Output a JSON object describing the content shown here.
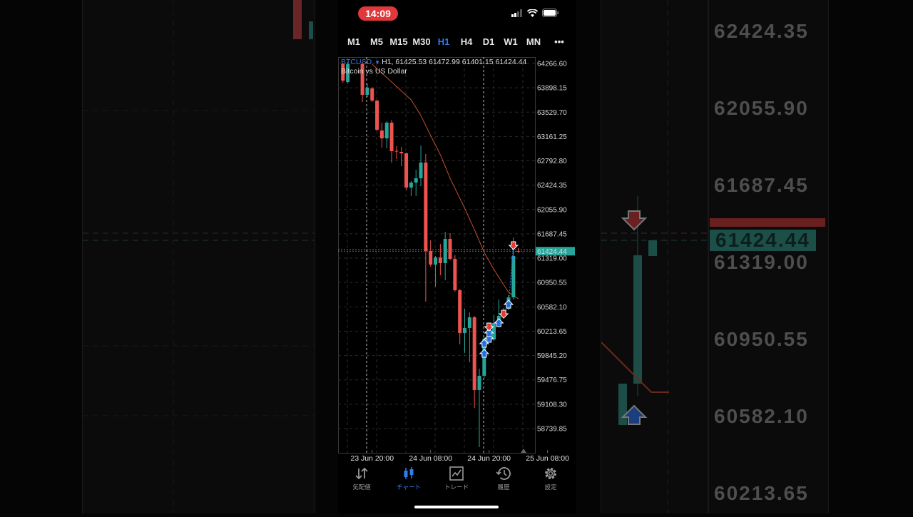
{
  "status_bar": {
    "time": "14:09",
    "icons": [
      "cellular-signal-icon",
      "wifi-icon",
      "battery-icon"
    ],
    "time_pill_color": "#e1393b"
  },
  "timeframes": {
    "items": [
      "M1",
      "M5",
      "M15",
      "M30",
      "H1",
      "H4",
      "D1",
      "W1",
      "MN"
    ],
    "selected": "H1",
    "more_label": "•••"
  },
  "legend": {
    "symbol": "BTCUSD",
    "ohlc_line": "H1, 61425.53 61472.99 61401.15 61424.44",
    "description": "Bitcoin vs US Dollar"
  },
  "colors": {
    "accent": "#2f7bf0",
    "bull": "#26a69a",
    "bear": "#ef5350",
    "ma": "#c0502a",
    "bid_line": "#26a69a",
    "ask_line": "#ef5350",
    "buy_arrow": "#1f6fe5",
    "sell_arrow": "#e53935"
  },
  "chart_data": {
    "type": "candlestick",
    "symbol": "BTCUSD",
    "timeframe": "H1",
    "ylim": [
      58372,
      64364
    ],
    "xlim": [
      "23 Jun 13:00",
      "25 Jun 05:24"
    ],
    "grid": true,
    "y_ticks": [
      "64266.60",
      "63898.15",
      "63529.70",
      "63161.25",
      "62792.80",
      "62424.35",
      "62055.90",
      "61687.45",
      "61319.00",
      "60950.55",
      "60582.10",
      "60213.65",
      "59845.20",
      "59476.75",
      "59108.30",
      "58739.85"
    ],
    "x_ticks": [
      "23 Jun 20:00",
      "24 Jun 08:00",
      "24 Jun 20:00",
      "25 Jun 08:00"
    ],
    "current_price_label": "61424.44",
    "bid": 61424.44,
    "ask": 61450,
    "candles": [
      [
        "23 Jun 14:00",
        64256,
        64277,
        63975,
        64007
      ],
      [
        "23 Jun 15:00",
        63986,
        64290,
        63960,
        64256
      ],
      [
        "23 Jun 18:00",
        64256,
        64290,
        63684,
        63792
      ],
      [
        "23 Jun 19:00",
        63792,
        63954,
        63759,
        63900
      ],
      [
        "23 Jun 20:00",
        63889,
        63910,
        63684,
        63705
      ],
      [
        "23 Jun 21:00",
        63705,
        63716,
        63241,
        63263
      ],
      [
        "23 Jun 22:00",
        63252,
        63371,
        62993,
        63133
      ],
      [
        "23 Jun 23:00",
        63133,
        63392,
        62982,
        63371
      ],
      [
        "24 Jun 00:00",
        63371,
        63414,
        62766,
        62939
      ],
      [
        "24 Jun 01:00",
        62944,
        63014,
        62820,
        62933
      ],
      [
        "24 Jun 02:00",
        62928,
        63004,
        62712,
        62906
      ],
      [
        "24 Jun 03:00",
        62906,
        62917,
        62356,
        62388
      ],
      [
        "24 Jun 04:00",
        62388,
        62485,
        62259,
        62464
      ],
      [
        "24 Jun 05:00",
        62464,
        62658,
        62259,
        62529
      ],
      [
        "24 Jun 06:00",
        62529,
        63025,
        62410,
        62766
      ],
      [
        "24 Jun 07:00",
        62766,
        62896,
        60661,
        61427
      ],
      [
        "24 Jun 08:00",
        61427,
        61589,
        61190,
        61222
      ],
      [
        "24 Jun 09:00",
        61222,
        61352,
        60888,
        61330
      ],
      [
        "24 Jun 10:00",
        61330,
        61536,
        61061,
        61244
      ],
      [
        "24 Jun 11:00",
        61244,
        61719,
        60985,
        61611
      ],
      [
        "24 Jun 12:00",
        61611,
        61697,
        61287,
        61309
      ],
      [
        "24 Jun 13:00",
        61309,
        61363,
        60812,
        60834
      ],
      [
        "24 Jun 14:00",
        60834,
        60855,
        60014,
        60186
      ],
      [
        "24 Jun 15:00",
        60186,
        60553,
        59884,
        60262
      ],
      [
        "24 Jun 16:00",
        60262,
        60499,
        59744,
        60424
      ],
      [
        "24 Jun 17:00",
        60424,
        60445,
        59053,
        59323
      ],
      [
        "24 Jun 18:00",
        59323,
        59647,
        58459,
        59539
      ],
      [
        "24 Jun 19:00",
        59539,
        60132,
        59506,
        60100
      ],
      [
        "24 Jun 20:00",
        60078,
        60262,
        60046,
        60208
      ],
      [
        "24 Jun 21:00",
        60089,
        60456,
        60067,
        60337
      ],
      [
        "24 Jun 22:00",
        60316,
        60693,
        60294,
        60445
      ],
      [
        "24 Jun 23:00",
        60424,
        60564,
        60402,
        60532
      ],
      [
        "25 Jun 00:00",
        60553,
        60758,
        60532,
        60726
      ],
      [
        "25 Jun 01:00",
        60726,
        61633,
        60693,
        61352
      ],
      [
        "25 Jun 02:00",
        61425.53,
        61472.99,
        61401.15,
        61424.44
      ]
    ],
    "moving_average": [
      [
        "23 Jun 20:00",
        64256
      ],
      [
        "24 Jun 00:00",
        63986
      ],
      [
        "24 Jun 04:00",
        63716
      ],
      [
        "24 Jun 06:00",
        63479
      ],
      [
        "24 Jun 08:00",
        63176
      ],
      [
        "24 Jun 10:00",
        62885
      ],
      [
        "24 Jun 12:00",
        62529
      ],
      [
        "24 Jun 15:00",
        62075
      ],
      [
        "24 Jun 17:00",
        61751
      ],
      [
        "24 Jun 19:00",
        61406
      ],
      [
        "24 Jun 21:00",
        61147
      ],
      [
        "25 Jun 00:00",
        60801
      ],
      [
        "25 Jun 02:00",
        60704
      ]
    ],
    "trades": [
      {
        "type": "buy",
        "time": "24 Jun 19:00",
        "price": 59873
      },
      {
        "type": "buy",
        "time": "24 Jun 19:00",
        "price": 60024
      },
      {
        "type": "buy",
        "time": "24 Jun 20:00",
        "price": 60100
      },
      {
        "type": "buy",
        "time": "24 Jun 20:00",
        "price": 60186
      },
      {
        "type": "sell",
        "time": "24 Jun 20:00",
        "price": 60283
      },
      {
        "type": "buy",
        "time": "24 Jun 22:00",
        "price": 60337
      },
      {
        "type": "sell",
        "time": "24 Jun 23:00",
        "price": 60477
      },
      {
        "type": "buy",
        "time": "25 Jun 00:00",
        "price": 60618
      },
      {
        "type": "sell",
        "time": "25 Jun 01:00",
        "price": 61514
      }
    ]
  },
  "bottom_nav": {
    "items": [
      {
        "label": "気配値",
        "icon": "quotes-arrows-icon"
      },
      {
        "label": "チャート",
        "icon": "candlestick-chart-icon"
      },
      {
        "label": "トレード",
        "icon": "trade-chart-icon"
      },
      {
        "label": "履歴",
        "icon": "history-clock-icon"
      },
      {
        "label": "設定",
        "icon": "settings-gear-icon"
      }
    ],
    "selected": "チャート"
  },
  "background_zoom": {
    "price_labels": [
      "62424.35",
      "62055.90",
      "61687.45",
      "61319.00",
      "60950.55",
      "60582.10",
      "60213.65"
    ],
    "current_price_label": "61424.44"
  }
}
